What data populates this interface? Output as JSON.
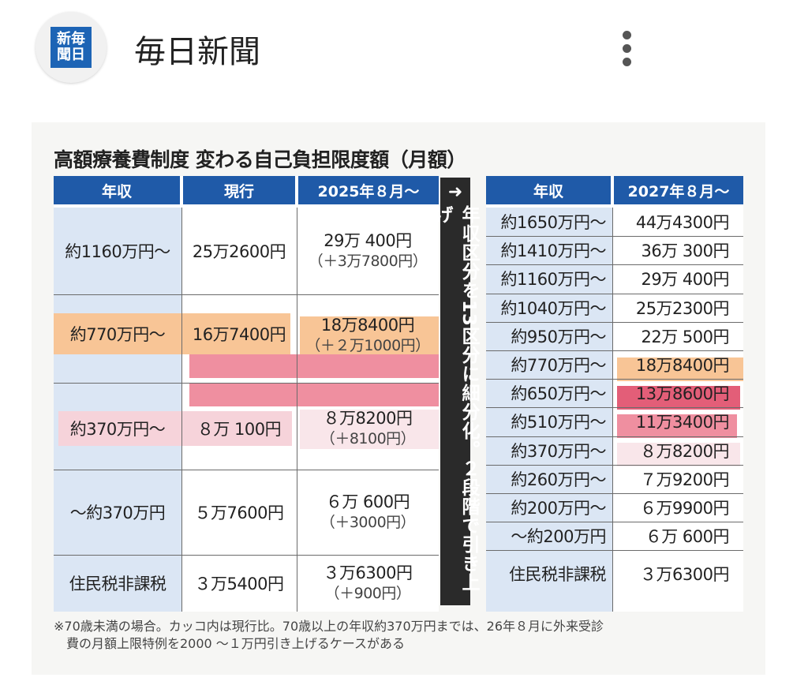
{
  "header": {
    "logo_text_1": "新毎",
    "logo_text_2": "聞日",
    "publication": "毎日新聞",
    "more_icon": "vertical-ellipsis-icon"
  },
  "figure": {
    "title": "高額療養費制度 変わる自己負担限度額（月額）",
    "left_table": {
      "headers": [
        "年収",
        "現行",
        "2025年８月～"
      ],
      "rows": [
        {
          "income": "約1160万円～",
          "current": "25万2600円",
          "new": "29万  400円",
          "diff": "（＋3万7800円）"
        },
        {
          "income": "約770万円～",
          "current": "16万7400円",
          "new": "18万8400円",
          "diff": "（＋２万1000円）"
        },
        {
          "income": "約370万円～",
          "current": "８万  100円",
          "new": "８万8200円",
          "diff": "（＋8100円）"
        },
        {
          "income": "～約370万円",
          "current": "５万7600円",
          "new": "６万  600円",
          "diff": "（＋3000円）"
        },
        {
          "income": "住民税非課税",
          "current": "３万5400円",
          "new": "３万6300円",
          "diff": "（＋900円）"
        }
      ]
    },
    "arrow_text": "年収区分を13区分に細分化。２段階で引き上げ",
    "right_table": {
      "headers": [
        "年収",
        "2027年８月～"
      ],
      "rows": [
        {
          "income": "約1650万円～",
          "amount": "44万4300円"
        },
        {
          "income": "約1410万円～",
          "amount": "36万  300円"
        },
        {
          "income": "約1160万円～",
          "amount": "29万  400円"
        },
        {
          "income": "約1040万円～",
          "amount": "25万2300円"
        },
        {
          "income": "約950万円～",
          "amount": "22万  500円"
        },
        {
          "income": "約770万円～",
          "amount": "18万8400円"
        },
        {
          "income": "約650万円～",
          "amount": "13万8600円"
        },
        {
          "income": "約510万円～",
          "amount": "11万3400円"
        },
        {
          "income": "約370万円～",
          "amount": "８万8200円"
        },
        {
          "income": "約260万円～",
          "amount": "７万9200円"
        },
        {
          "income": "約200万円～",
          "amount": "６万9900円"
        },
        {
          "income": "～約200万円",
          "amount": "６万  600円"
        },
        {
          "income": "住民税非課税",
          "amount": "３万6300円"
        }
      ]
    },
    "note_line_1": "※70歳未満の場合。カッコ内は現行比。70歳以上の年収約370万円までは、26年８月に外来受診",
    "note_line_2": "費の月額上限特例を2000 ～１万円引き上げるケースがある",
    "colors": {
      "header_blue": "#1f5aa8",
      "orange": "#f8c596",
      "pink": "#ef8fa0",
      "light_pink": "#f6d3da"
    }
  }
}
